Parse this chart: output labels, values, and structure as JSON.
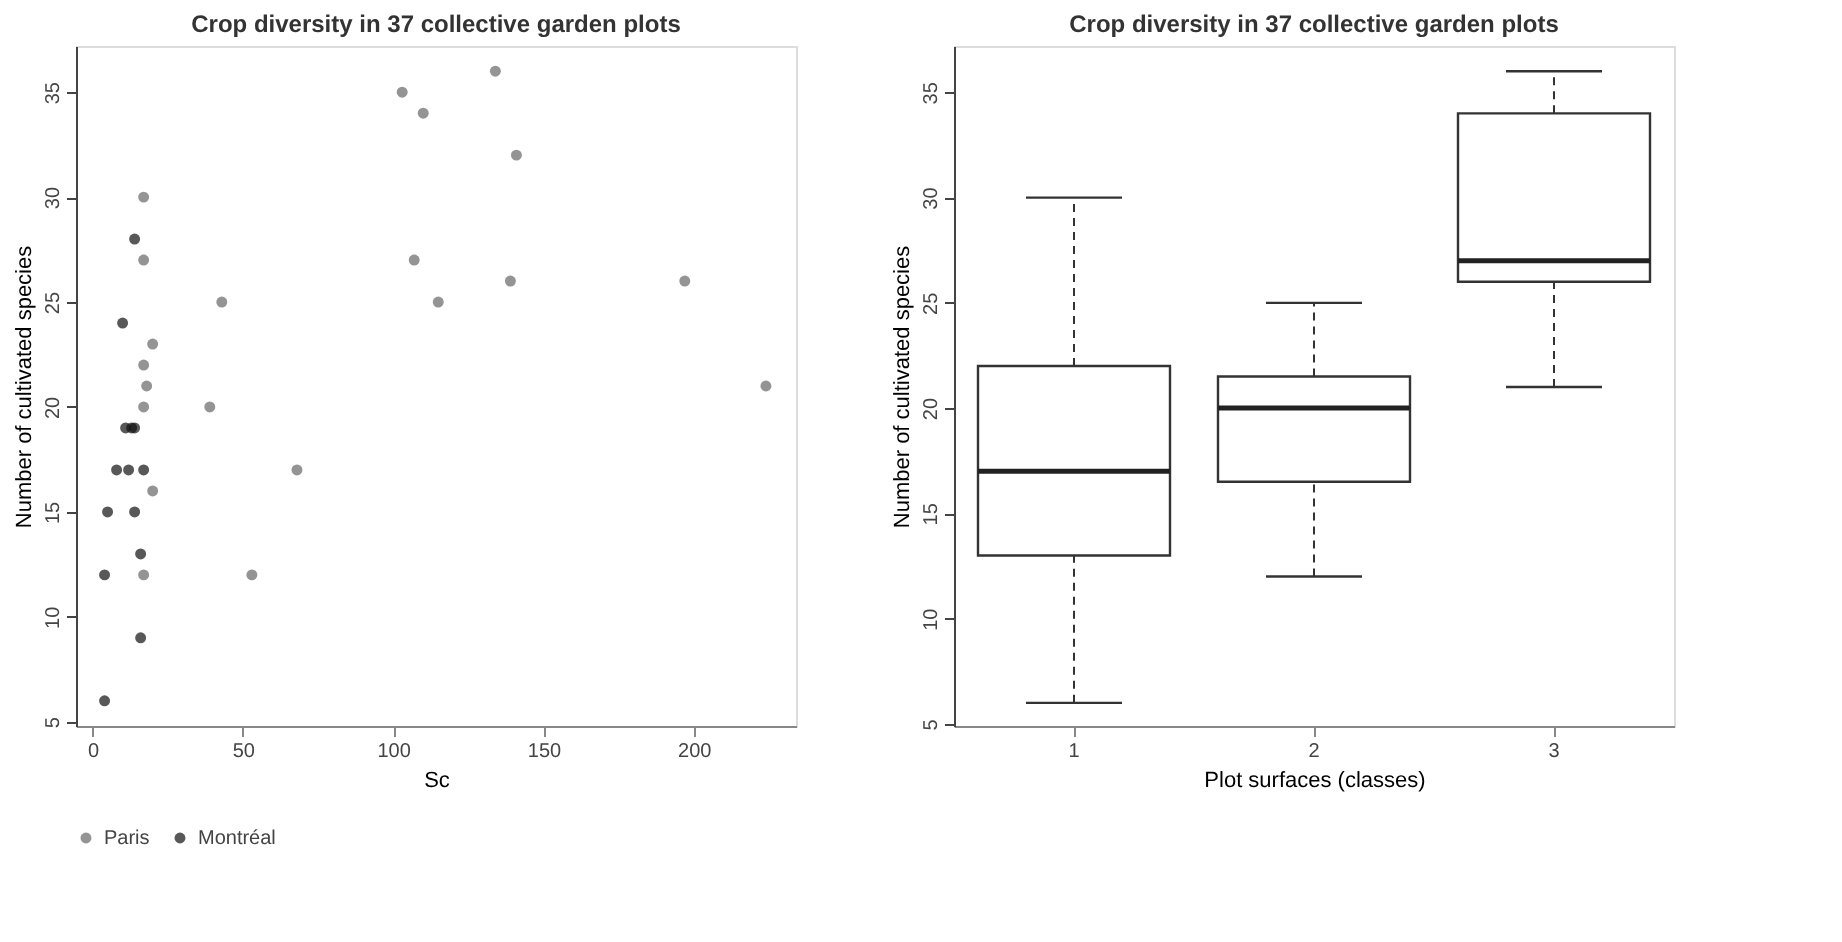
{
  "chart_data": [
    {
      "type": "scatter",
      "title": "Crop diversity in 37 collective garden plots",
      "xlabel": "Sc",
      "ylabel": "Number of cultivated species",
      "xlim": [
        -5.5,
        234
      ],
      "ylim": [
        4.8,
        37.2
      ],
      "xticks": [
        0,
        50,
        100,
        150,
        200
      ],
      "yticks": [
        5,
        10,
        15,
        20,
        25,
        30,
        35
      ],
      "grid": false,
      "legend": "bottom",
      "marker": "circle",
      "series": [
        {
          "name": "Paris",
          "color": "#666666",
          "x": [
            17,
            17,
            43,
            20,
            17,
            18,
            17,
            39,
            68,
            20,
            17,
            53,
            134,
            103,
            110,
            141,
            107,
            139,
            115,
            197,
            224
          ],
          "values": [
            30,
            27,
            25,
            23,
            22,
            21,
            20,
            20,
            17,
            16,
            12,
            12,
            36,
            35,
            34,
            32,
            27,
            26,
            25,
            26,
            21
          ]
        },
        {
          "name": "Montréal",
          "color": "#111111",
          "x": [
            14,
            10,
            11,
            13,
            14,
            8,
            12,
            17,
            5,
            14,
            16,
            4,
            16,
            4
          ],
          "values": [
            28,
            24,
            19,
            19,
            19,
            17,
            17,
            17,
            15,
            15,
            13,
            12,
            9,
            6
          ]
        }
      ]
    },
    {
      "type": "box",
      "title": "Crop diversity in 37 collective garden plots",
      "xlabel": "Plot surfaces (classes)",
      "ylabel": "Number of cultivated species",
      "ylim": [
        4.9,
        37.2
      ],
      "yticks": [
        5,
        10,
        15,
        20,
        25,
        30,
        35
      ],
      "grid": false,
      "categories": [
        "1",
        "2",
        "3"
      ],
      "boxes": [
        {
          "low": 6,
          "q1": 13,
          "median": 17,
          "q3": 22,
          "high": 30
        },
        {
          "low": 12,
          "q1": 16.5,
          "median": 20,
          "q3": 21.5,
          "high": 25
        },
        {
          "low": 21,
          "q1": 26,
          "median": 27,
          "q3": 34,
          "high": 36
        }
      ]
    }
  ]
}
